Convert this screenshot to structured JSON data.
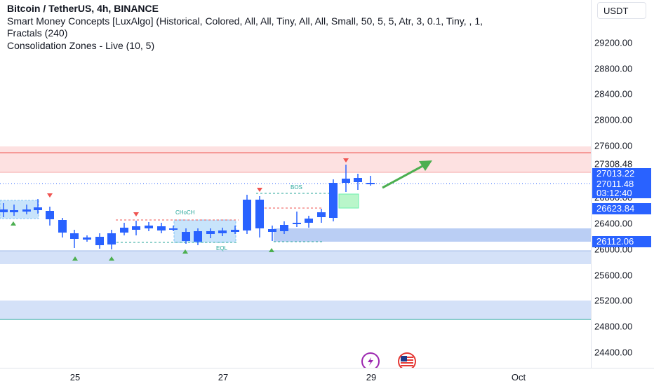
{
  "legend": {
    "symbol_line": "Bitcoin / TetherUS, 4h, BINANCE",
    "indicator_1": "Smart Money Concepts [LuxAlgo] (Historical, Colored, All, All, Tiny, All, All, Small, 50, 5, 5, Atr, 3, 0.1, Tiny, , 1,",
    "indicator_1b": "Fractals (240)",
    "indicator_2": "Consolidation Zones - Live (10, 5)"
  },
  "price_axis": {
    "currency_label": "USDT",
    "ticks": [
      "29200.00",
      "28800.00",
      "28400.00",
      "28000.00",
      "27600.00",
      "27308.48",
      "26800.00",
      "26400.00",
      "26000.00",
      "25600.00",
      "25200.00",
      "24800.00",
      "24400.00"
    ],
    "badge_current_price": "27013.22",
    "badge_last_price": "27011.48",
    "badge_countdown": "03:12:40",
    "badge_level_1": "26623.84",
    "badge_level_2": "26112.06"
  },
  "time_axis": {
    "labels": [
      "25",
      "27",
      "29",
      "Oct"
    ]
  },
  "annotations": {
    "choch_label": "CHoCH",
    "bos_label": "BOS",
    "eql_label": "EQL"
  },
  "colors": {
    "bull_candle": "#2962ff",
    "bear_candle": "#2962ff",
    "supply_zone": "#f7c5c5",
    "demand_zone": "#c3d5f7",
    "arrow": "#4caf50",
    "accent": "#2962ff"
  },
  "icons": {
    "event_1": "lightning-icon",
    "event_2": "us-flag-icon"
  }
}
